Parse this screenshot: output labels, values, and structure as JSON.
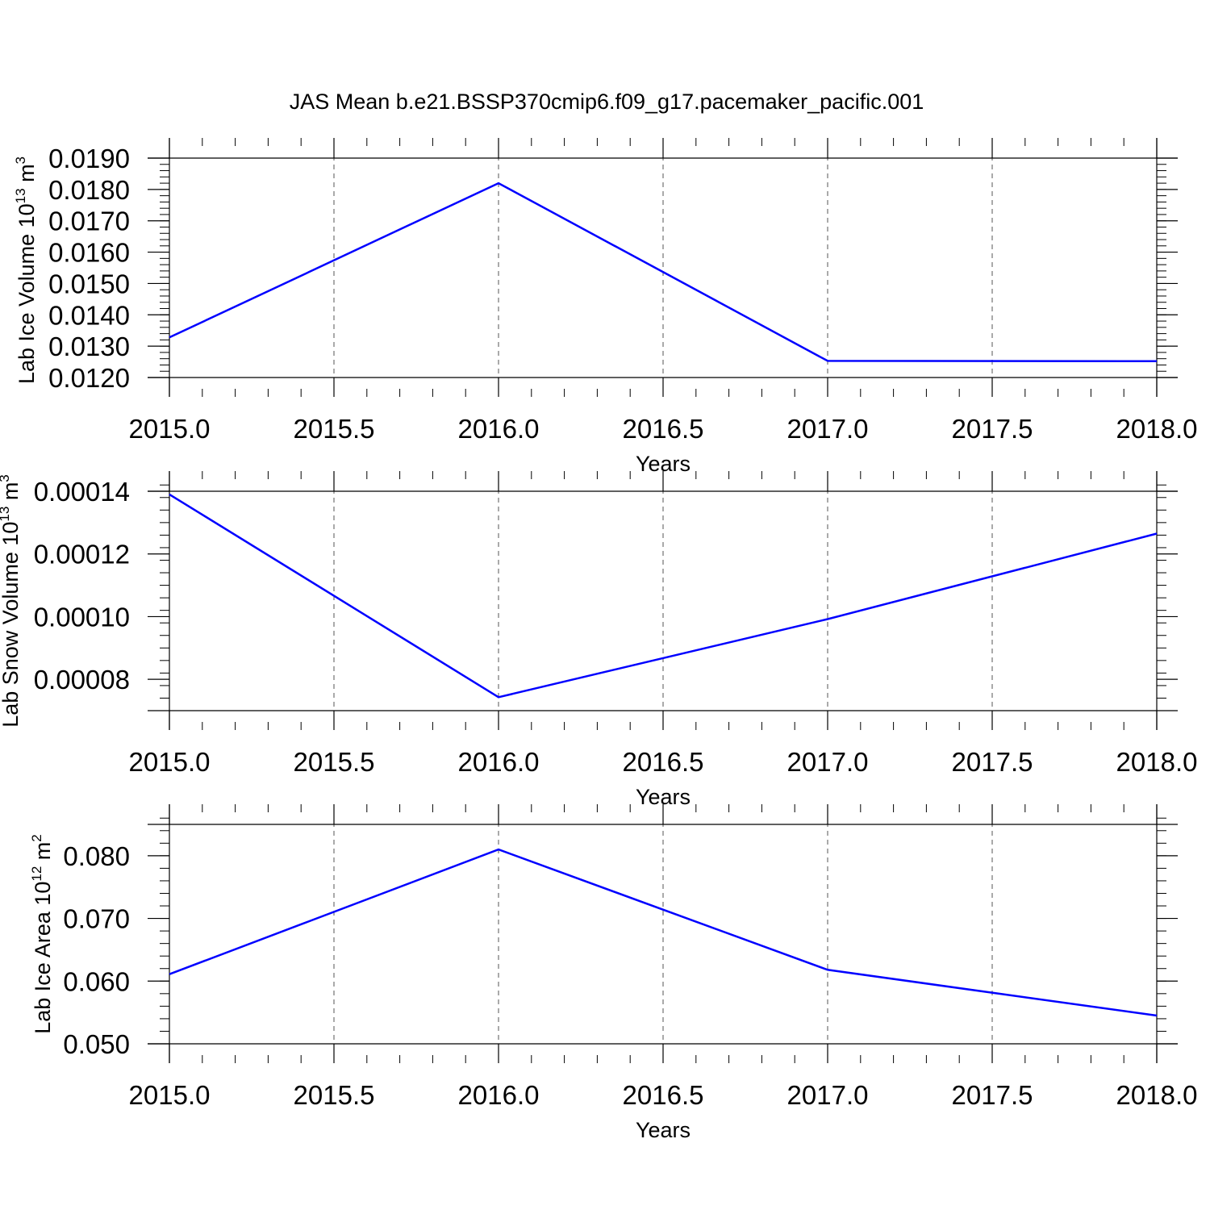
{
  "title": "JAS Mean b.e21.BSSP370cmip6.f09_g17.pacemaker_pacific.001",
  "chart_data": [
    {
      "type": "line",
      "title": "JAS Mean b.e21.BSSP370cmip6.f09_g17.pacemaker_pacific.001",
      "ylabel_main": "Lab Ice Volume 10",
      "ylabel_exp": "13",
      "ylabel_unit": "m",
      "ylabel_unit_exp": "3",
      "xlabel": "Years",
      "xlim": [
        2015.0,
        2018.0
      ],
      "ylim": [
        0.012,
        0.019
      ],
      "x_ticks": [
        2015.0,
        2015.5,
        2016.0,
        2016.5,
        2017.0,
        2017.5,
        2018.0
      ],
      "x_tick_labels": [
        "2015.0",
        "2015.5",
        "2016.0",
        "2016.5",
        "2017.0",
        "2017.5",
        "2018.0"
      ],
      "y_ticks": [
        0.012,
        0.013,
        0.014,
        0.015,
        0.016,
        0.017,
        0.018,
        0.019
      ],
      "y_tick_labels": [
        "0.0120",
        "0.0130",
        "0.0140",
        "0.0150",
        "0.0160",
        "0.0170",
        "0.0180",
        "0.0190"
      ],
      "y_minor_step": 0.0002,
      "grid": "x-dashed",
      "series": [
        {
          "color": "#0000ff",
          "x": [
            2015,
            2016,
            2017,
            2018
          ],
          "y": [
            0.01328,
            0.0182,
            0.01253,
            0.01252
          ]
        }
      ]
    },
    {
      "type": "line",
      "ylabel_main": "Lab Snow Volume 10",
      "ylabel_exp": "13",
      "ylabel_unit": "m",
      "ylabel_unit_exp": "3",
      "xlabel": "Years",
      "xlim": [
        2015.0,
        2018.0
      ],
      "ylim": [
        7e-05,
        0.00014
      ],
      "x_ticks": [
        2015.0,
        2015.5,
        2016.0,
        2016.5,
        2017.0,
        2017.5,
        2018.0
      ],
      "x_tick_labels": [
        "2015.0",
        "2015.5",
        "2016.0",
        "2016.5",
        "2017.0",
        "2017.5",
        "2018.0"
      ],
      "y_ticks": [
        8e-05,
        0.0001,
        0.00012,
        0.00014
      ],
      "y_tick_labels": [
        "0.00008",
        "0.00010",
        "0.00012",
        "0.00014"
      ],
      "y_minor_step": 4e-06,
      "grid": "x-dashed",
      "series": [
        {
          "color": "#0000ff",
          "x": [
            2015,
            2016,
            2017,
            2018
          ],
          "y": [
            0.000139,
            7.43e-05,
            9.92e-05,
            0.0001265
          ]
        }
      ]
    },
    {
      "type": "line",
      "ylabel_main": "Lab Ice Area 10",
      "ylabel_exp": "12",
      "ylabel_unit": "m",
      "ylabel_unit_exp": "2",
      "xlabel": "Years",
      "xlim": [
        2015.0,
        2018.0
      ],
      "ylim": [
        0.05,
        0.085
      ],
      "x_ticks": [
        2015.0,
        2015.5,
        2016.0,
        2016.5,
        2017.0,
        2017.5,
        2018.0
      ],
      "x_tick_labels": [
        "2015.0",
        "2015.5",
        "2016.0",
        "2016.5",
        "2017.0",
        "2017.5",
        "2018.0"
      ],
      "y_ticks": [
        0.05,
        0.06,
        0.07,
        0.08
      ],
      "y_tick_labels": [
        "0.050",
        "0.060",
        "0.070",
        "0.080"
      ],
      "y_minor_step": 0.002,
      "grid": "x-dashed",
      "series": [
        {
          "color": "#0000ff",
          "x": [
            2015,
            2016,
            2017,
            2018
          ],
          "y": [
            0.0611,
            0.081,
            0.0618,
            0.0545
          ]
        }
      ]
    }
  ]
}
